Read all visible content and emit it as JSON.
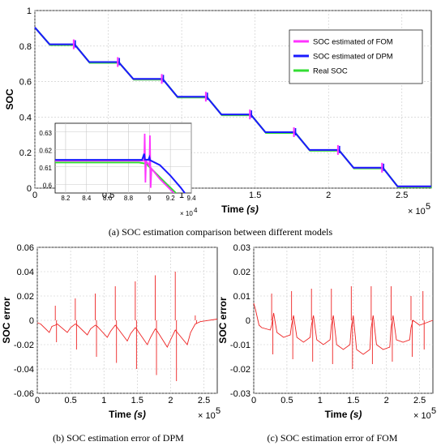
{
  "colors": {
    "fom": "#ff33ff",
    "dpm": "#1a1aff",
    "real": "#33dd33",
    "error": "#ee2222",
    "grid": "#c8c8c8"
  },
  "captions": {
    "a": "(a) SOC estimation comparison between different models",
    "b": "(b) SOC estimation error of DPM",
    "c": "(c) SOC estimation error of FOM"
  },
  "chart_data": [
    {
      "id": "a",
      "type": "line",
      "ylabel": "SOC",
      "xlabel_main": "Time",
      "xlabel_unit": "(s)",
      "x_multiplier": "× 10",
      "x_exponent": "5",
      "xlim": [
        0,
        2.7
      ],
      "ylim": [
        0,
        1
      ],
      "x_ticks": [
        "0",
        "0.5",
        "1",
        "1.5",
        "2",
        "2.5"
      ],
      "x_tick_values": [
        0,
        0.5,
        1,
        1.5,
        2,
        2.5
      ],
      "y_ticks": [
        "0",
        "0.2",
        "0.4",
        "0.6",
        "0.8",
        "1"
      ],
      "y_tick_values": [
        0,
        0.2,
        0.4,
        0.6,
        0.8,
        1
      ],
      "legend_position": "top-right",
      "series": [
        {
          "name": "SOC estimated of FOM",
          "color_key": "fom"
        },
        {
          "name": "SOC estimated of DPM",
          "color_key": "dpm"
        },
        {
          "name": "Real SOC",
          "color_key": "real"
        }
      ],
      "profile": [
        [
          0,
          0.905
        ],
        [
          0.1,
          0.81
        ],
        [
          0.27,
          0.81
        ],
        [
          0.37,
          0.71
        ],
        [
          0.57,
          0.71
        ],
        [
          0.67,
          0.615
        ],
        [
          0.87,
          0.615
        ],
        [
          0.97,
          0.515
        ],
        [
          1.17,
          0.515
        ],
        [
          1.27,
          0.415
        ],
        [
          1.47,
          0.415
        ],
        [
          1.57,
          0.315
        ],
        [
          1.77,
          0.315
        ],
        [
          1.87,
          0.215
        ],
        [
          2.07,
          0.215
        ],
        [
          2.17,
          0.115
        ],
        [
          2.37,
          0.115
        ],
        [
          2.47,
          0.01
        ],
        [
          2.7,
          0.01
        ]
      ],
      "step_marks_x": [
        0.27,
        0.57,
        0.87,
        1.17,
        1.47,
        1.77,
        2.07,
        2.37
      ]
    },
    {
      "id": "a-inset",
      "type": "line",
      "xlim": [
        8.1,
        9.4
      ],
      "ylim": [
        0.595,
        0.635
      ],
      "x_ticks": [
        "8.2",
        "8.4",
        "8.6",
        "8.8",
        "9",
        "9.2",
        "9.4"
      ],
      "x_tick_values": [
        8.2,
        8.4,
        8.6,
        8.8,
        9.0,
        9.2,
        9.4
      ],
      "y_ticks": [
        "0.6",
        "0.61",
        "0.62",
        "0.63"
      ],
      "y_tick_values": [
        0.6,
        0.61,
        0.62,
        0.63
      ],
      "x_multiplier": "× 10",
      "x_exponent": "4",
      "series": [
        {
          "name": "Real SOC",
          "color_key": "real",
          "points": [
            [
              8.1,
              0.6125
            ],
            [
              8.9,
              0.6125
            ],
            [
              8.97,
              0.6118
            ],
            [
              9.05,
              0.607
            ],
            [
              9.15,
              0.601
            ],
            [
              9.27,
              0.594
            ]
          ]
        },
        {
          "name": "SOC estimated of FOM",
          "color_key": "fom",
          "points": [
            [
              8.1,
              0.6135
            ],
            [
              8.9,
              0.6135
            ],
            [
              8.95,
              0.6135
            ],
            [
              8.955,
              0.629
            ],
            [
              8.962,
              0.601
            ],
            [
              8.968,
              0.6135
            ],
            [
              9.0,
              0.6105
            ],
            [
              9.005,
              0.628
            ],
            [
              9.012,
              0.598
            ],
            [
              9.02,
              0.609
            ],
            [
              9.1,
              0.603
            ],
            [
              9.2,
              0.597
            ],
            [
              9.3,
              0.591
            ]
          ]
        },
        {
          "name": "SOC estimated of DPM",
          "color_key": "dpm",
          "points": [
            [
              8.1,
              0.614
            ],
            [
              8.93,
              0.614
            ],
            [
              8.95,
              0.6175
            ],
            [
              8.957,
              0.6142
            ],
            [
              8.99,
              0.614
            ],
            [
              9.0,
              0.6155
            ],
            [
              9.006,
              0.6138
            ],
            [
              9.1,
              0.611
            ],
            [
              9.2,
              0.605
            ],
            [
              9.3,
              0.598
            ],
            [
              9.35,
              0.594
            ]
          ]
        }
      ]
    },
    {
      "id": "b",
      "type": "line",
      "ylabel": "SOC error",
      "xlabel_main": "Time",
      "xlabel_unit": "(s)",
      "x_multiplier": "× 10",
      "x_exponent": "5",
      "xlim": [
        0,
        2.7
      ],
      "ylim": [
        -0.06,
        0.06
      ],
      "x_ticks": [
        "0",
        "0.5",
        "1",
        "1.5",
        "2",
        "2.5"
      ],
      "x_tick_values": [
        0,
        0.5,
        1,
        1.5,
        2,
        2.5
      ],
      "y_ticks": [
        "-0.06",
        "-0.04",
        "-0.02",
        "0",
        "0.02",
        "0.04",
        "0.06"
      ],
      "y_tick_values": [
        -0.06,
        -0.04,
        -0.02,
        0,
        0.02,
        0.04,
        0.06
      ],
      "series": [
        {
          "name": "SOC error",
          "color_key": "error",
          "baseline": [
            [
              0,
              -0.002
            ],
            [
              0.05,
              -0.003
            ],
            [
              0.18,
              -0.01
            ],
            [
              0.22,
              -0.005
            ],
            [
              0.27,
              -0.004
            ],
            [
              0.3,
              -0.003
            ],
            [
              0.45,
              -0.01
            ],
            [
              0.5,
              -0.006
            ],
            [
              0.57,
              -0.003
            ],
            [
              0.6,
              -0.004
            ],
            [
              0.75,
              -0.012
            ],
            [
              0.8,
              -0.007
            ],
            [
              0.87,
              -0.004
            ],
            [
              0.9,
              -0.005
            ],
            [
              1.05,
              -0.014
            ],
            [
              1.1,
              -0.009
            ],
            [
              1.17,
              -0.004
            ],
            [
              1.2,
              -0.006
            ],
            [
              1.35,
              -0.017
            ],
            [
              1.4,
              -0.011
            ],
            [
              1.47,
              -0.006
            ],
            [
              1.5,
              -0.008
            ],
            [
              1.65,
              -0.02
            ],
            [
              1.7,
              -0.014
            ],
            [
              1.77,
              -0.007
            ],
            [
              1.8,
              -0.009
            ],
            [
              1.95,
              -0.022
            ],
            [
              2.0,
              -0.016
            ],
            [
              2.07,
              -0.008
            ],
            [
              2.1,
              -0.01
            ],
            [
              2.25,
              -0.02
            ],
            [
              2.3,
              -0.01
            ],
            [
              2.37,
              -0.003
            ],
            [
              2.45,
              -0.001
            ],
            [
              2.7,
              0.001
            ]
          ],
          "spikes": [
            [
              0.27,
              0.012,
              -0.018
            ],
            [
              0.57,
              0.018,
              -0.024
            ],
            [
              0.87,
              0.022,
              -0.03
            ],
            [
              1.17,
              0.028,
              -0.035
            ],
            [
              1.47,
              0.032,
              -0.04
            ],
            [
              1.77,
              0.037,
              -0.045
            ],
            [
              2.07,
              0.04,
              -0.05
            ],
            [
              2.37,
              0.004,
              -0.003
            ]
          ]
        }
      ]
    },
    {
      "id": "c",
      "type": "line",
      "ylabel": "SOC error",
      "xlabel_main": "Time",
      "xlabel_unit": "(s)",
      "x_multiplier": "× 10",
      "x_exponent": "5",
      "xlim": [
        0,
        2.7
      ],
      "ylim": [
        -0.03,
        0.03
      ],
      "x_ticks": [
        "0",
        "0.5",
        "1",
        "1.5",
        "2",
        "2.5"
      ],
      "x_tick_values": [
        0,
        0.5,
        1,
        1.5,
        2,
        2.5
      ],
      "y_ticks": [
        "-0.03",
        "-0.02",
        "-0.01",
        "0",
        "0.01",
        "0.02",
        "0.03"
      ],
      "y_tick_values": [
        -0.03,
        -0.02,
        -0.01,
        0,
        0.01,
        0.02,
        0.03
      ],
      "series": [
        {
          "name": "SOC error",
          "color_key": "error",
          "baseline": [
            [
              0,
              0.007
            ],
            [
              0.03,
              0.004
            ],
            [
              0.08,
              -0.002
            ],
            [
              0.12,
              -0.003
            ],
            [
              0.25,
              -0.004
            ],
            [
              0.27,
              -0.002
            ],
            [
              0.3,
              0.003
            ],
            [
              0.35,
              -0.005
            ],
            [
              0.45,
              -0.007
            ],
            [
              0.55,
              -0.006
            ],
            [
              0.57,
              -0.002
            ],
            [
              0.6,
              0.002
            ],
            [
              0.65,
              -0.007
            ],
            [
              0.75,
              -0.009
            ],
            [
              0.85,
              -0.007
            ],
            [
              0.87,
              -0.002
            ],
            [
              0.9,
              0.002
            ],
            [
              0.95,
              -0.008
            ],
            [
              1.05,
              -0.01
            ],
            [
              1.15,
              -0.008
            ],
            [
              1.17,
              -0.002
            ],
            [
              1.2,
              0.002
            ],
            [
              1.25,
              -0.01
            ],
            [
              1.35,
              -0.012
            ],
            [
              1.45,
              -0.01
            ],
            [
              1.47,
              -0.003
            ],
            [
              1.5,
              0.002
            ],
            [
              1.55,
              -0.012
            ],
            [
              1.65,
              -0.014
            ],
            [
              1.75,
              -0.012
            ],
            [
              1.77,
              -0.003
            ],
            [
              1.8,
              0.002
            ],
            [
              1.85,
              -0.01
            ],
            [
              1.95,
              -0.012
            ],
            [
              2.05,
              -0.011
            ],
            [
              2.07,
              -0.003
            ],
            [
              2.1,
              0.002
            ],
            [
              2.15,
              -0.008
            ],
            [
              2.25,
              -0.009
            ],
            [
              2.35,
              -0.008
            ],
            [
              2.37,
              -0.003
            ],
            [
              2.4,
              0.0
            ],
            [
              2.5,
              -0.002
            ],
            [
              2.6,
              -0.001
            ],
            [
              2.7,
              0.0
            ]
          ],
          "spikes": [
            [
              0.27,
              0.011,
              -0.014
            ],
            [
              0.57,
              0.012,
              -0.016
            ],
            [
              0.87,
              0.013,
              -0.017
            ],
            [
              1.17,
              0.013,
              -0.018
            ],
            [
              1.47,
              0.014,
              -0.02
            ],
            [
              1.77,
              0.014,
              -0.018
            ],
            [
              2.07,
              0.014,
              -0.017
            ],
            [
              2.37,
              0.01,
              -0.015
            ],
            [
              2.55,
              0.012,
              -0.012
            ]
          ]
        }
      ]
    }
  ]
}
